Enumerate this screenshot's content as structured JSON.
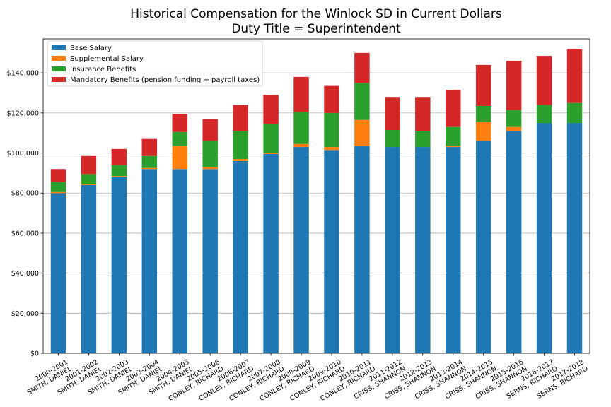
{
  "chart_data": {
    "type": "bar",
    "stacked": true,
    "title": "Historical Compensation for the Winlock SD in Current Dollars",
    "subtitle": "Duty Title = Superintendent",
    "xlabel": "",
    "ylabel": "",
    "ylim": [
      0,
      157000
    ],
    "yticks": [
      0,
      20000,
      40000,
      60000,
      80000,
      100000,
      120000,
      140000
    ],
    "ytick_labels": [
      "$0",
      "$20,000",
      "$40,000",
      "$60,000",
      "$80,000",
      "$100,000",
      "$120,000",
      "$140,000"
    ],
    "grid": "horizontal",
    "legend_position": "top-left",
    "categories": [
      [
        "2000-2001",
        "SMITH, DANIEL"
      ],
      [
        "2001-2002",
        "SMITH, DANIEL"
      ],
      [
        "2002-2003",
        "SMITH, DANIEL"
      ],
      [
        "2003-2004",
        "SMITH, DANIEL"
      ],
      [
        "2004-2005",
        "SMITH, DANIEL"
      ],
      [
        "2005-2006",
        "CONLEY, RICHARD"
      ],
      [
        "2006-2007",
        "CONLEY, RICHARD"
      ],
      [
        "2007-2008",
        "CONLEY, RICHARD"
      ],
      [
        "2008-2009",
        "CONLEY, RICHARD"
      ],
      [
        "2009-2010",
        "CONLEY, RICHARD"
      ],
      [
        "2010-2011",
        "CONLEY, RICHARD"
      ],
      [
        "2011-2012",
        "CRISS, SHANNON"
      ],
      [
        "2012-2013",
        "CRISS, SHANNON"
      ],
      [
        "2013-2014",
        "CRISS, SHANNON"
      ],
      [
        "2014-2015",
        "CRISS, SHANNON"
      ],
      [
        "2015-2016",
        "CRISS, SHANNON"
      ],
      [
        "2016-2017",
        "SERNS, RICHARD"
      ],
      [
        "2017-2018",
        "SERNS, RICHARD"
      ]
    ],
    "series": [
      {
        "name": "Base Salary",
        "color": "#1f77b4",
        "values": [
          80000,
          84000,
          88000,
          92000,
          92000,
          92000,
          96000,
          99500,
          103000,
          101500,
          103500,
          103000,
          103000,
          103000,
          106000,
          111000,
          115000,
          115000
        ]
      },
      {
        "name": "Supplemental Salary",
        "color": "#ff7f0e",
        "values": [
          500,
          500,
          500,
          500,
          11500,
          1000,
          1000,
          500,
          1500,
          1500,
          13000,
          0,
          0,
          500,
          9500,
          2000,
          0,
          0
        ]
      },
      {
        "name": "Insurance Benefits",
        "color": "#2ca02c",
        "values": [
          5000,
          5000,
          5500,
          6000,
          7000,
          13000,
          14000,
          14500,
          16000,
          17000,
          18500,
          8500,
          8000,
          9500,
          8000,
          8500,
          9000,
          10000
        ]
      },
      {
        "name": "Mandatory Benefits (pension funding + payroll taxes)",
        "color": "#d62728",
        "values": [
          6500,
          9000,
          8000,
          8500,
          9000,
          11000,
          13000,
          14500,
          17500,
          13500,
          15000,
          16500,
          17000,
          18500,
          20500,
          24500,
          24500,
          27000
        ]
      }
    ]
  }
}
